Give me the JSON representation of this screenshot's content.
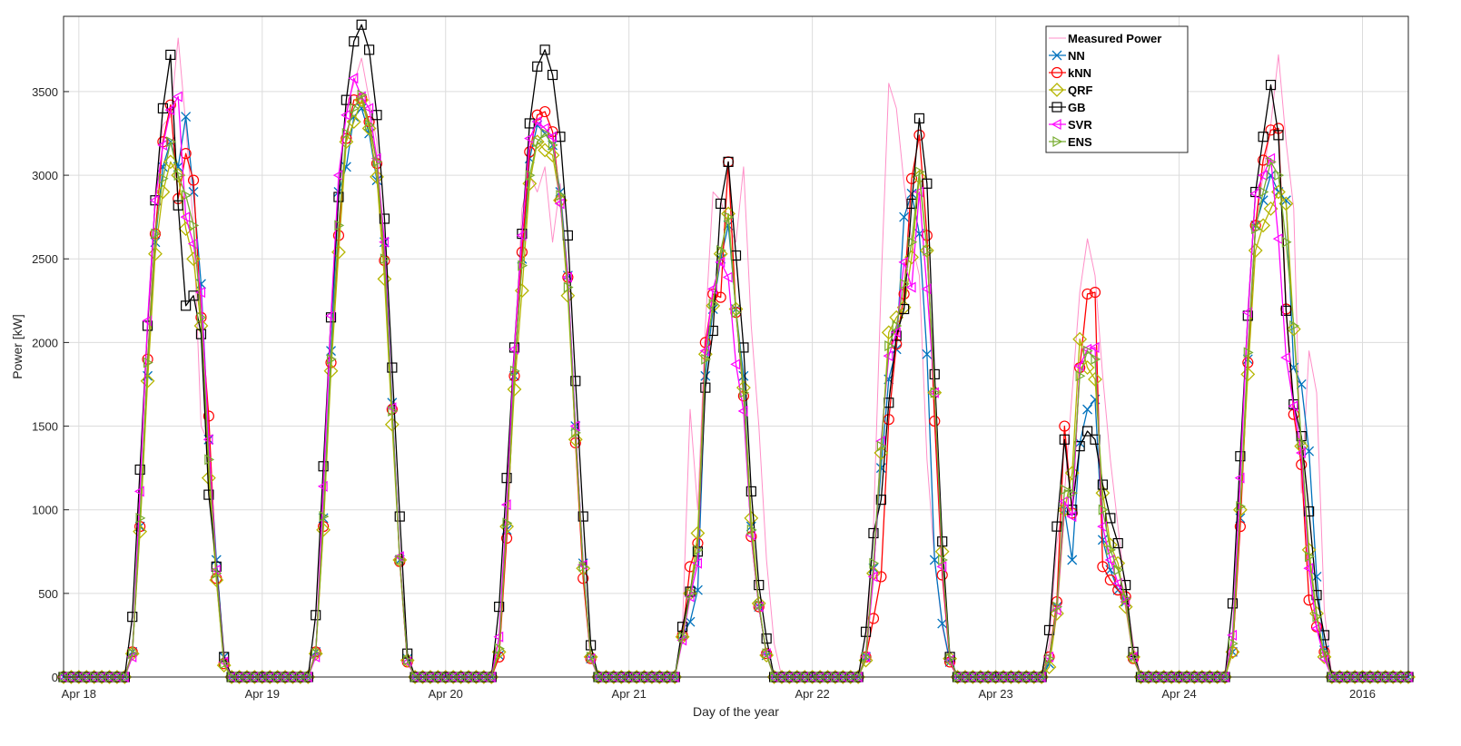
{
  "chart_data": {
    "type": "line",
    "title": "",
    "xlabel": "Day of the year",
    "ylabel": "Power [kW]",
    "x_unit": "hour",
    "x_start": "2016-04-17T22:00",
    "xlim": [
      "2016-04-17T22:00",
      "2016-04-25T06:00"
    ],
    "ylim": [
      0,
      3950
    ],
    "yticks": [
      0,
      500,
      1000,
      1500,
      2000,
      2500,
      3000,
      3500
    ],
    "xticks": [
      {
        "at": "2016-04-18T00:00",
        "label": "Apr 18"
      },
      {
        "at": "2016-04-19T00:00",
        "label": "Apr 19"
      },
      {
        "at": "2016-04-20T00:00",
        "label": "Apr 20"
      },
      {
        "at": "2016-04-21T00:00",
        "label": "Apr 21"
      },
      {
        "at": "2016-04-22T00:00",
        "label": "Apr 22"
      },
      {
        "at": "2016-04-23T00:00",
        "label": "Apr 23"
      },
      {
        "at": "2016-04-24T00:00",
        "label": "Apr 24"
      },
      {
        "at": "2016-04-25T00:00",
        "label": ""
      }
    ],
    "year_label": "2016",
    "grid": true,
    "legend_position": "top-right",
    "legend": [
      {
        "name": "Measured Power",
        "color": "#ff8fc8",
        "marker": "none"
      },
      {
        "name": "NN",
        "color": "#0072bd",
        "marker": "x"
      },
      {
        "name": "kNN",
        "color": "#ff0000",
        "marker": "circle"
      },
      {
        "name": "QRF",
        "color": "#b5b500",
        "marker": "diamond"
      },
      {
        "name": "GB",
        "color": "#000000",
        "marker": "square"
      },
      {
        "name": "SVR",
        "color": "#ff00ff",
        "marker": "triangle-left"
      },
      {
        "name": "ENS",
        "color": "#77ac30",
        "marker": "triangle-right"
      }
    ],
    "days": [
      {
        "date": "2016-04-18",
        "start": 6,
        "end": 20,
        "measured": [
          0,
          150,
          900,
          1850,
          2900,
          3300,
          3350,
          3820,
          3300,
          2700,
          1500,
          1400,
          700,
          150,
          0
        ],
        "NN": [
          0,
          150,
          900,
          1800,
          2600,
          3050,
          3200,
          3050,
          3350,
          2900,
          2350,
          1420,
          700,
          120,
          0
        ],
        "kNN": [
          0,
          150,
          900,
          1900,
          2650,
          3200,
          3420,
          2860,
          3130,
          2970,
          2150,
          1560,
          590,
          80,
          0
        ],
        "QRF": [
          0,
          140,
          870,
          1770,
          2530,
          2900,
          3080,
          3000,
          2680,
          2500,
          2100,
          1190,
          580,
          70,
          0
        ],
        "GB": [
          0,
          360,
          1240,
          2100,
          2850,
          3400,
          3720,
          2820,
          2220,
          2280,
          2050,
          1090,
          660,
          120,
          0
        ],
        "SVR": [
          0,
          120,
          1110,
          2130,
          2850,
          3180,
          3390,
          3470,
          2750,
          2590,
          2300,
          1420,
          640,
          90,
          0
        ],
        "ENS": [
          0,
          140,
          950,
          1880,
          2650,
          2980,
          3200,
          3000,
          2880,
          2700,
          2150,
          1300,
          620,
          80,
          0
        ]
      },
      {
        "date": "2016-04-19",
        "start": 6,
        "end": 20,
        "measured": [
          0,
          150,
          1000,
          2000,
          2900,
          3400,
          3550,
          3700,
          3450,
          3200,
          2400,
          1600,
          700,
          130,
          0
        ],
        "NN": [
          0,
          150,
          950,
          1950,
          2900,
          3050,
          3350,
          3400,
          3250,
          2970,
          2600,
          1640,
          700,
          110,
          0
        ],
        "kNN": [
          0,
          150,
          900,
          1880,
          2640,
          3220,
          3450,
          3460,
          3320,
          3070,
          2490,
          1600,
          690,
          90,
          0
        ],
        "QRF": [
          0,
          140,
          880,
          1830,
          2540,
          3200,
          3320,
          3450,
          3280,
          2990,
          2380,
          1510,
          700,
          100,
          0
        ],
        "GB": [
          0,
          370,
          1260,
          2150,
          2870,
          3450,
          3800,
          3900,
          3750,
          3360,
          2740,
          1850,
          960,
          140,
          0
        ],
        "SVR": [
          0,
          120,
          1140,
          2160,
          3000,
          3360,
          3580,
          3470,
          3400,
          3100,
          2600,
          1610,
          720,
          90,
          0
        ],
        "ENS": [
          0,
          140,
          960,
          1900,
          2700,
          3250,
          3400,
          3480,
          3300,
          3080,
          2500,
          1590,
          700,
          100,
          0
        ]
      },
      {
        "date": "2016-04-20",
        "start": 6,
        "end": 20,
        "measured": [
          0,
          120,
          850,
          1900,
          2800,
          3000,
          2900,
          3050,
          2600,
          2950,
          2400,
          1400,
          620,
          110,
          0
        ],
        "NN": [
          0,
          130,
          880,
          1800,
          2500,
          3100,
          3300,
          3250,
          3180,
          2900,
          2400,
          1500,
          680,
          110,
          0
        ],
        "kNN": [
          0,
          120,
          830,
          1800,
          2540,
          3140,
          3360,
          3380,
          3260,
          2850,
          2390,
          1400,
          590,
          110,
          0
        ],
        "QRF": [
          0,
          150,
          900,
          1720,
          2310,
          2950,
          3200,
          3150,
          3120,
          2850,
          2280,
          1420,
          650,
          120,
          0
        ],
        "GB": [
          0,
          420,
          1190,
          1970,
          2650,
          3310,
          3650,
          3750,
          3600,
          3230,
          2640,
          1770,
          960,
          190,
          0
        ],
        "SVR": [
          0,
          240,
          1030,
          1960,
          2640,
          3220,
          3320,
          3280,
          3230,
          2830,
          2390,
          1500,
          670,
          110,
          0
        ],
        "ENS": [
          0,
          170,
          920,
          1830,
          2460,
          3000,
          3200,
          3250,
          3180,
          2880,
          2330,
          1460,
          660,
          120,
          0
        ]
      },
      {
        "date": "2016-04-21",
        "start": 6,
        "end": 20,
        "measured": [
          0,
          300,
          1600,
          1000,
          2100,
          2900,
          2850,
          2700,
          2600,
          3050,
          2100,
          1500,
          700,
          200,
          0
        ],
        "NN": [
          0,
          250,
          330,
          520,
          1800,
          2200,
          2500,
          2700,
          2200,
          1800,
          900,
          420,
          130,
          0,
          0
        ],
        "kNN": [
          0,
          250,
          660,
          800,
          2000,
          2290,
          2270,
          3080,
          2180,
          1680,
          840,
          420,
          140,
          0,
          0
        ],
        "QRF": [
          0,
          240,
          500,
          860,
          1930,
          2220,
          2530,
          2770,
          2200,
          1730,
          950,
          440,
          130,
          0,
          0
        ],
        "GB": [
          0,
          300,
          510,
          750,
          1730,
          2070,
          2830,
          3080,
          2520,
          1970,
          1110,
          550,
          230,
          0,
          0
        ],
        "SVR": [
          0,
          220,
          480,
          680,
          1950,
          2320,
          2480,
          2390,
          1870,
          1590,
          850,
          420,
          140,
          0,
          0
        ],
        "ENS": [
          0,
          240,
          500,
          760,
          1900,
          2230,
          2550,
          2750,
          2180,
          1700,
          880,
          430,
          140,
          0,
          0
        ]
      },
      {
        "date": "2016-04-22",
        "start": 6,
        "end": 20,
        "measured": [
          0,
          150,
          900,
          2350,
          3550,
          3400,
          2950,
          2600,
          2400,
          1300,
          700,
          300,
          80,
          0,
          0
        ],
        "NN": [
          0,
          120,
          650,
          1250,
          1780,
          1960,
          2750,
          2890,
          2650,
          1930,
          700,
          320,
          90,
          0,
          0
        ],
        "kNN": [
          0,
          120,
          350,
          600,
          1540,
          1990,
          2290,
          2980,
          3240,
          2640,
          1530,
          610,
          90,
          0,
          0
        ],
        "QRF": [
          0,
          100,
          620,
          1340,
          2060,
          2150,
          2210,
          2510,
          2990,
          2550,
          1700,
          750,
          110,
          0,
          0
        ],
        "GB": [
          0,
          270,
          860,
          1060,
          1640,
          2040,
          2200,
          2830,
          3340,
          2950,
          1810,
          810,
          120,
          0,
          0
        ],
        "SVR": [
          0,
          120,
          600,
          1410,
          1920,
          2060,
          2480,
          2330,
          2900,
          2320,
          1700,
          660,
          100,
          0,
          0
        ],
        "ENS": [
          0,
          120,
          680,
          1380,
          1980,
          2100,
          2350,
          2600,
          3020,
          2550,
          1700,
          700,
          110,
          0,
          0
        ]
      },
      {
        "date": "2016-04-23",
        "start": 6,
        "end": 20,
        "measured": [
          0,
          200,
          800,
          1100,
          1700,
          2300,
          2620,
          2400,
          1800,
          1300,
          900,
          500,
          200,
          0,
          0
        ],
        "NN": [
          0,
          80,
          420,
          1000,
          700,
          1400,
          1600,
          1660,
          820,
          640,
          520,
          450,
          120,
          0,
          0
        ],
        "kNN": [
          0,
          120,
          450,
          1500,
          980,
          1850,
          2290,
          2300,
          660,
          580,
          520,
          480,
          110,
          0,
          0
        ],
        "QRF": [
          0,
          60,
          380,
          1000,
          1220,
          2020,
          1850,
          1780,
          1100,
          790,
          680,
          420,
          120,
          0,
          0
        ],
        "GB": [
          0,
          280,
          900,
          1420,
          1000,
          1380,
          1470,
          1420,
          1150,
          950,
          800,
          550,
          150,
          0,
          0
        ],
        "SVR": [
          0,
          120,
          400,
          1050,
          960,
          1860,
          1960,
          1970,
          900,
          700,
          560,
          450,
          120,
          0,
          0
        ],
        "ENS": [
          0,
          110,
          420,
          1120,
          1100,
          1800,
          1950,
          1900,
          1000,
          760,
          640,
          470,
          120,
          0,
          0
        ]
      },
      {
        "date": "2016-04-24",
        "start": 6,
        "end": 20,
        "measured": [
          0,
          200,
          1000,
          2000,
          2700,
          3000,
          3300,
          3720,
          3200,
          2800,
          1100,
          1950,
          1700,
          400,
          0
        ],
        "NN": [
          0,
          150,
          950,
          1900,
          2700,
          2850,
          3000,
          2900,
          2850,
          1850,
          1750,
          1350,
          600,
          160,
          0
        ],
        "kNN": [
          0,
          150,
          900,
          1880,
          2700,
          3090,
          3270,
          3280,
          2200,
          1570,
          1270,
          460,
          300,
          150,
          0
        ],
        "QRF": [
          0,
          150,
          1000,
          1810,
          2550,
          2700,
          2800,
          2900,
          2830,
          2080,
          1380,
          760,
          380,
          120,
          0
        ],
        "GB": [
          0,
          440,
          1320,
          2160,
          2900,
          3230,
          3540,
          3240,
          2190,
          1630,
          1440,
          990,
          490,
          250,
          0
        ],
        "SVR": [
          0,
          250,
          1190,
          2180,
          2890,
          3000,
          3100,
          2620,
          1910,
          1620,
          1340,
          650,
          290,
          110,
          0
        ],
        "ENS": [
          0,
          200,
          1020,
          1940,
          2680,
          2900,
          3080,
          3000,
          2600,
          2100,
          1400,
          720,
          360,
          140,
          0
        ]
      }
    ]
  }
}
